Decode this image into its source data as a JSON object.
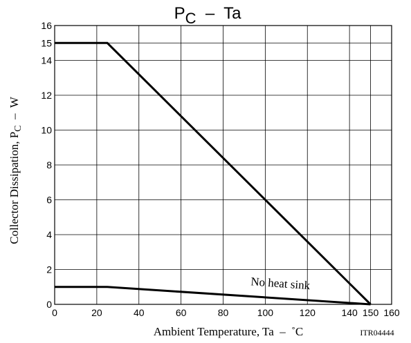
{
  "chart_data": {
    "type": "line",
    "title_main": "P",
    "title_sub": "C",
    "title_rest": "  –  Ta",
    "xlabel": "Ambient Temperature, Ta  –  ˚C",
    "ylabel_main": "Collector Dissipation, P",
    "ylabel_sub": "C",
    "ylabel_rest": "  –  W",
    "code": "ITR04444",
    "xlim": [
      0,
      160
    ],
    "ylim": [
      0,
      16
    ],
    "grid": true,
    "xticks": [
      0,
      20,
      40,
      60,
      80,
      100,
      120,
      140,
      150,
      160
    ],
    "yticks": [
      0,
      2,
      4,
      6,
      8,
      10,
      12,
      14,
      15,
      16
    ],
    "series": [
      {
        "x": [
          0,
          25,
          150
        ],
        "y": [
          15,
          15,
          0
        ]
      },
      {
        "x": [
          0,
          25,
          150
        ],
        "y": [
          1,
          1,
          0
        ]
      }
    ],
    "annotations": [
      {
        "text": "No heat sink",
        "x": 93,
        "y": 1.1
      }
    ]
  }
}
